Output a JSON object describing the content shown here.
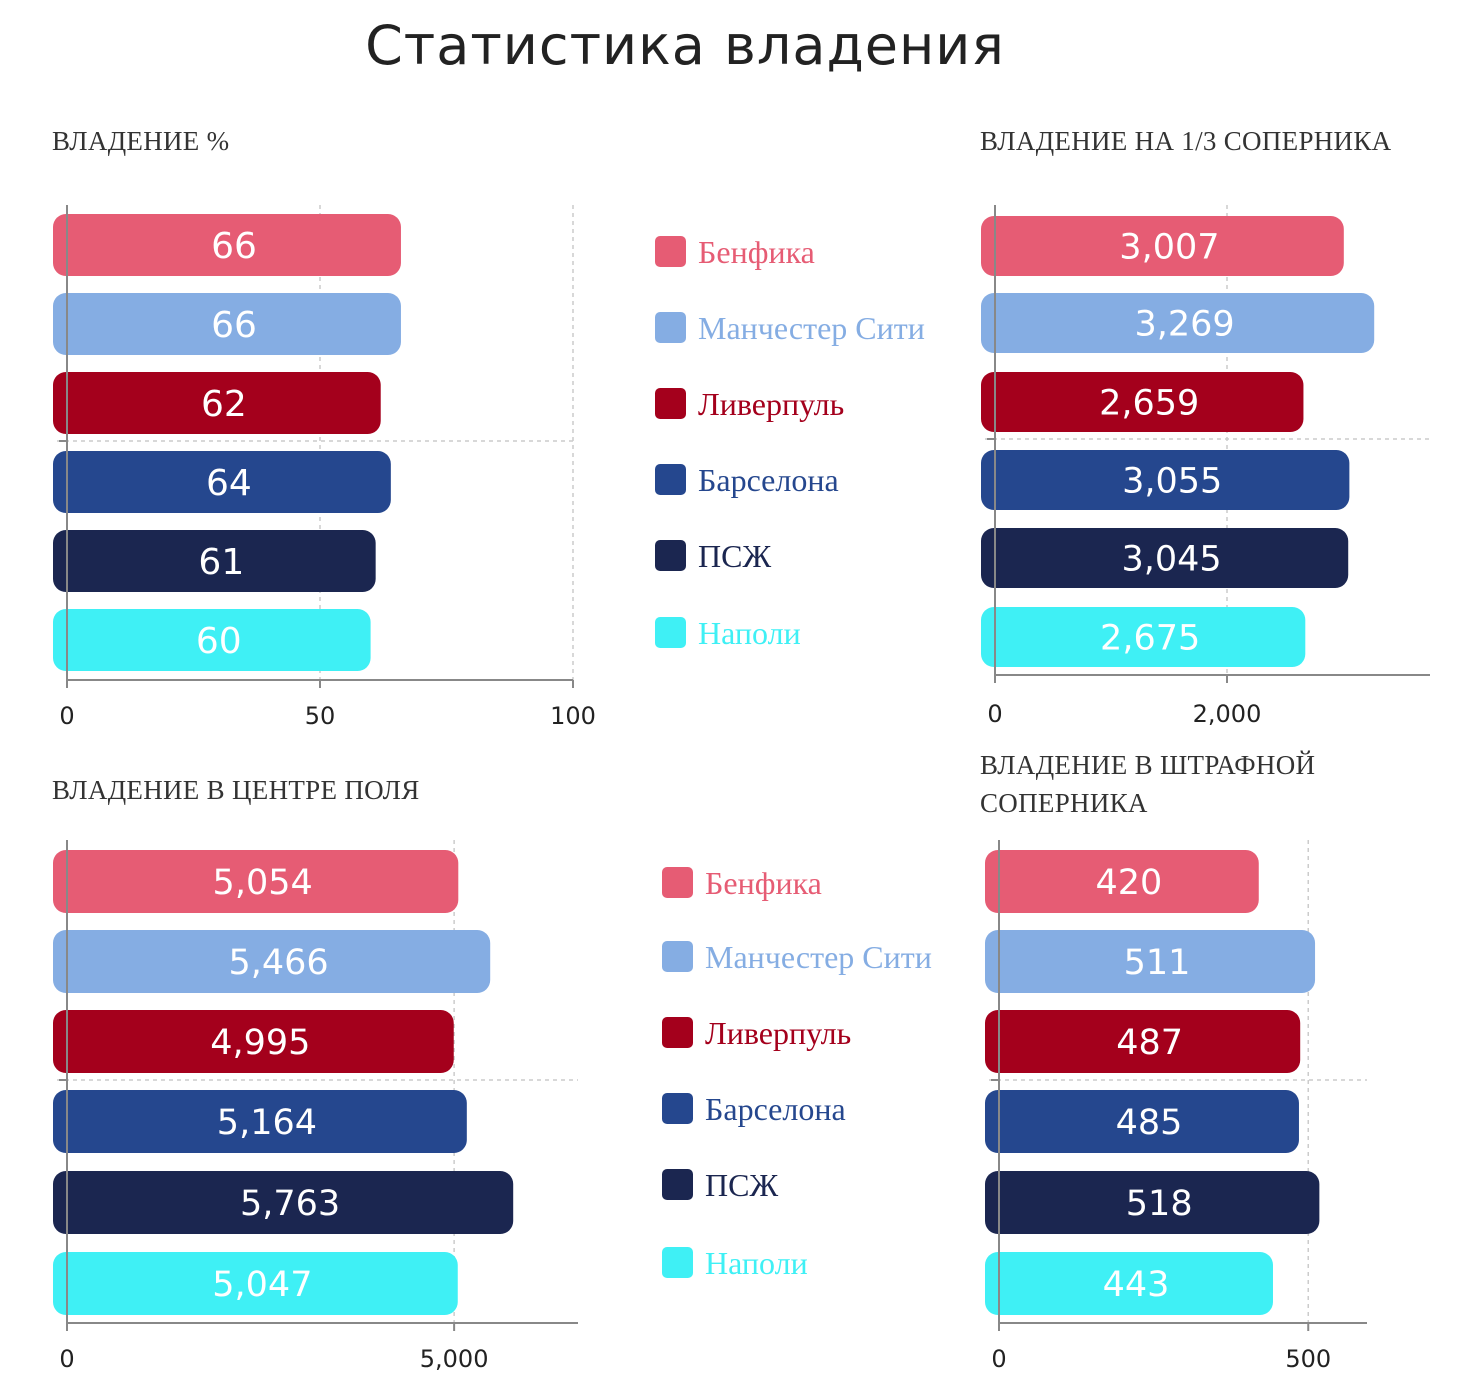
{
  "title": "Статистика владения",
  "teams": [
    {
      "name": "Бенфика",
      "color": "#e65c74"
    },
    {
      "name": "Манчестер Сити",
      "color": "#85ade3"
    },
    {
      "name": "Ливерпуль",
      "color": "#a4001c"
    },
    {
      "name": "Барселона",
      "color": "#25478e"
    },
    {
      "name": "ПСЖ",
      "color": "#1b2650"
    },
    {
      "name": "Наполи",
      "color": "#3ff0f5"
    }
  ],
  "chart_data": [
    {
      "type": "bar",
      "title": "ВЛАДЕНИЕ %",
      "categories": [
        "Бенфика",
        "Манчестер Сити",
        "Ливерпуль",
        "Барселона",
        "ПСЖ",
        "Наполи"
      ],
      "values": [
        66,
        66,
        62,
        64,
        61,
        60
      ],
      "value_labels": [
        "66",
        "66",
        "62",
        "64",
        "61",
        "60"
      ],
      "xlim": [
        0,
        100
      ],
      "ticks": [
        0,
        50,
        100
      ],
      "tick_labels": [
        "0",
        "50",
        "100"
      ],
      "grid": true
    },
    {
      "type": "bar",
      "title": "ВЛАДЕНИЕ НА 1/3 СОПЕРНИКА",
      "categories": [
        "Бенфика",
        "Манчестер Сити",
        "Ливерпуль",
        "Барселона",
        "ПСЖ",
        "Наполи"
      ],
      "values": [
        3007,
        3269,
        2659,
        3055,
        3045,
        2675
      ],
      "value_labels": [
        "3,007",
        "3,269",
        "2,659",
        "3,055",
        "3,045",
        "2,675"
      ],
      "xlim": [
        0,
        3750
      ],
      "ticks": [
        0,
        2000
      ],
      "tick_labels": [
        "0",
        "2,000"
      ],
      "grid": true
    },
    {
      "type": "bar",
      "title": "ВЛАДЕНИЕ В ЦЕНТРЕ ПОЛЯ",
      "categories": [
        "Бенфика",
        "Манчестер Сити",
        "Ливерпуль",
        "Барселона",
        "ПСЖ",
        "Наполи"
      ],
      "values": [
        5054,
        5466,
        4995,
        5164,
        5763,
        5047
      ],
      "value_labels": [
        "5,054",
        "5,466",
        "4,995",
        "5,164",
        "5,763",
        "5,047"
      ],
      "xlim": [
        0,
        6600
      ],
      "ticks": [
        0,
        5000
      ],
      "tick_labels": [
        "0",
        "5,000"
      ],
      "grid": true
    },
    {
      "type": "bar",
      "title": "ВЛАДЕНИЕ В ШТРАФНОЙ СОПЕРНИКА",
      "categories": [
        "Бенфика",
        "Манчестер Сити",
        "Ливерпуль",
        "Барселона",
        "ПСЖ",
        "Наполи"
      ],
      "values": [
        420,
        511,
        487,
        485,
        518,
        443
      ],
      "value_labels": [
        "420",
        "511",
        "487",
        "485",
        "518",
        "443"
      ],
      "xlim": [
        0,
        595
      ],
      "ticks": [
        0,
        500
      ],
      "tick_labels": [
        "0",
        "500"
      ],
      "grid": true
    }
  ]
}
